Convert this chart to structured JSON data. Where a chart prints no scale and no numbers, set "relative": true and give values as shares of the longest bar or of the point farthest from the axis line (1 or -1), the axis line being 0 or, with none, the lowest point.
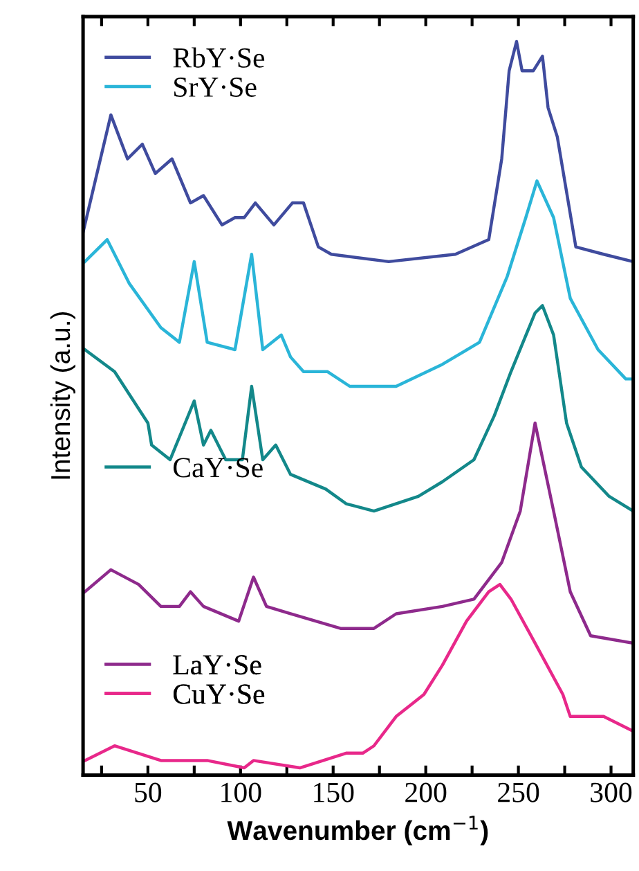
{
  "chart_data": {
    "type": "line",
    "xlabel": "Wavenumber (cm$^{−1}$)",
    "ylabel": "Intensity (a.u.)",
    "relative": true,
    "legend": "left",
    "xlim": [
      15,
      312
    ],
    "xticks": [
      {
        "value": 25,
        "label": null
      },
      50,
      {
        "value": 75,
        "label": null
      },
      100,
      {
        "value": 125,
        "label": null
      },
      150,
      {
        "value": 175,
        "label": null
      },
      200,
      {
        "value": 225,
        "label": null
      },
      250,
      {
        "value": 275,
        "label": null
      },
      300
    ],
    "series": [
      {
        "name": "RbY·Se",
        "color": "#3f4b9e",
        "x": [
          15,
          30,
          39,
          47,
          54,
          63,
          73,
          80,
          90,
          97,
          102,
          108,
          118,
          128,
          134,
          142,
          149,
          180,
          216,
          234,
          241,
          245,
          249,
          252,
          258,
          263,
          266,
          271,
          281,
          296,
          312
        ],
        "values": [
          0.74,
          0.9,
          0.84,
          0.86,
          0.82,
          0.84,
          0.78,
          0.79,
          0.75,
          0.76,
          0.76,
          0.78,
          0.75,
          0.78,
          0.78,
          0.72,
          0.71,
          0.7,
          0.71,
          0.73,
          0.84,
          0.96,
          1.0,
          0.96,
          0.96,
          0.98,
          0.91,
          0.87,
          0.72,
          0.71,
          0.7
        ]
      },
      {
        "name": "SrY·Se",
        "color": "#2ab5d8",
        "x": [
          16,
          28,
          40,
          57,
          67,
          75,
          82,
          97,
          106,
          112,
          122,
          127,
          134,
          147,
          159,
          184,
          209,
          229,
          244,
          254,
          260,
          269,
          278,
          293,
          308,
          312
        ],
        "values": [
          0.7,
          0.73,
          0.67,
          0.61,
          0.59,
          0.7,
          0.59,
          0.58,
          0.71,
          0.58,
          0.6,
          0.57,
          0.55,
          0.55,
          0.53,
          0.53,
          0.56,
          0.59,
          0.68,
          0.76,
          0.81,
          0.76,
          0.65,
          0.58,
          0.54,
          0.54
        ]
      },
      {
        "name": "CaY·Se",
        "color": "#13888a",
        "x": [
          16,
          32,
          50,
          52,
          62,
          75,
          80,
          84,
          92,
          101,
          106,
          112,
          119,
          127,
          146,
          157,
          172,
          196,
          209,
          226,
          237,
          246,
          259,
          263,
          269,
          276,
          284,
          299,
          312
        ],
        "values": [
          0.58,
          0.55,
          0.48,
          0.45,
          0.43,
          0.51,
          0.45,
          0.47,
          0.43,
          0.43,
          0.53,
          0.43,
          0.45,
          0.41,
          0.39,
          0.37,
          0.36,
          0.38,
          0.4,
          0.43,
          0.49,
          0.55,
          0.63,
          0.64,
          0.6,
          0.48,
          0.42,
          0.38,
          0.36
        ]
      },
      {
        "name": "LaY·Se",
        "color": "#8e2a8c",
        "x": [
          16,
          30,
          45,
          57,
          67,
          73,
          80,
          99,
          107,
          114,
          127,
          154,
          172,
          184,
          209,
          226,
          241,
          251,
          259,
          269,
          278,
          289,
          312
        ],
        "values": [
          0.25,
          0.28,
          0.26,
          0.23,
          0.23,
          0.25,
          0.23,
          0.21,
          0.27,
          0.23,
          0.22,
          0.2,
          0.2,
          0.22,
          0.23,
          0.24,
          0.29,
          0.36,
          0.48,
          0.36,
          0.25,
          0.19,
          0.18
        ]
      },
      {
        "name": "CuY·Se",
        "color": "#e8288a",
        "x": [
          16,
          32,
          57,
          82,
          102,
          107,
          132,
          157,
          166,
          172,
          184,
          199,
          209,
          222,
          234,
          240,
          246,
          259,
          274,
          278,
          296,
          312
        ],
        "values": [
          0.02,
          0.04,
          0.02,
          0.02,
          0.01,
          0.02,
          0.01,
          0.03,
          0.03,
          0.04,
          0.08,
          0.11,
          0.15,
          0.21,
          0.25,
          0.26,
          0.24,
          0.18,
          0.11,
          0.08,
          0.08,
          0.06
        ]
      }
    ]
  }
}
